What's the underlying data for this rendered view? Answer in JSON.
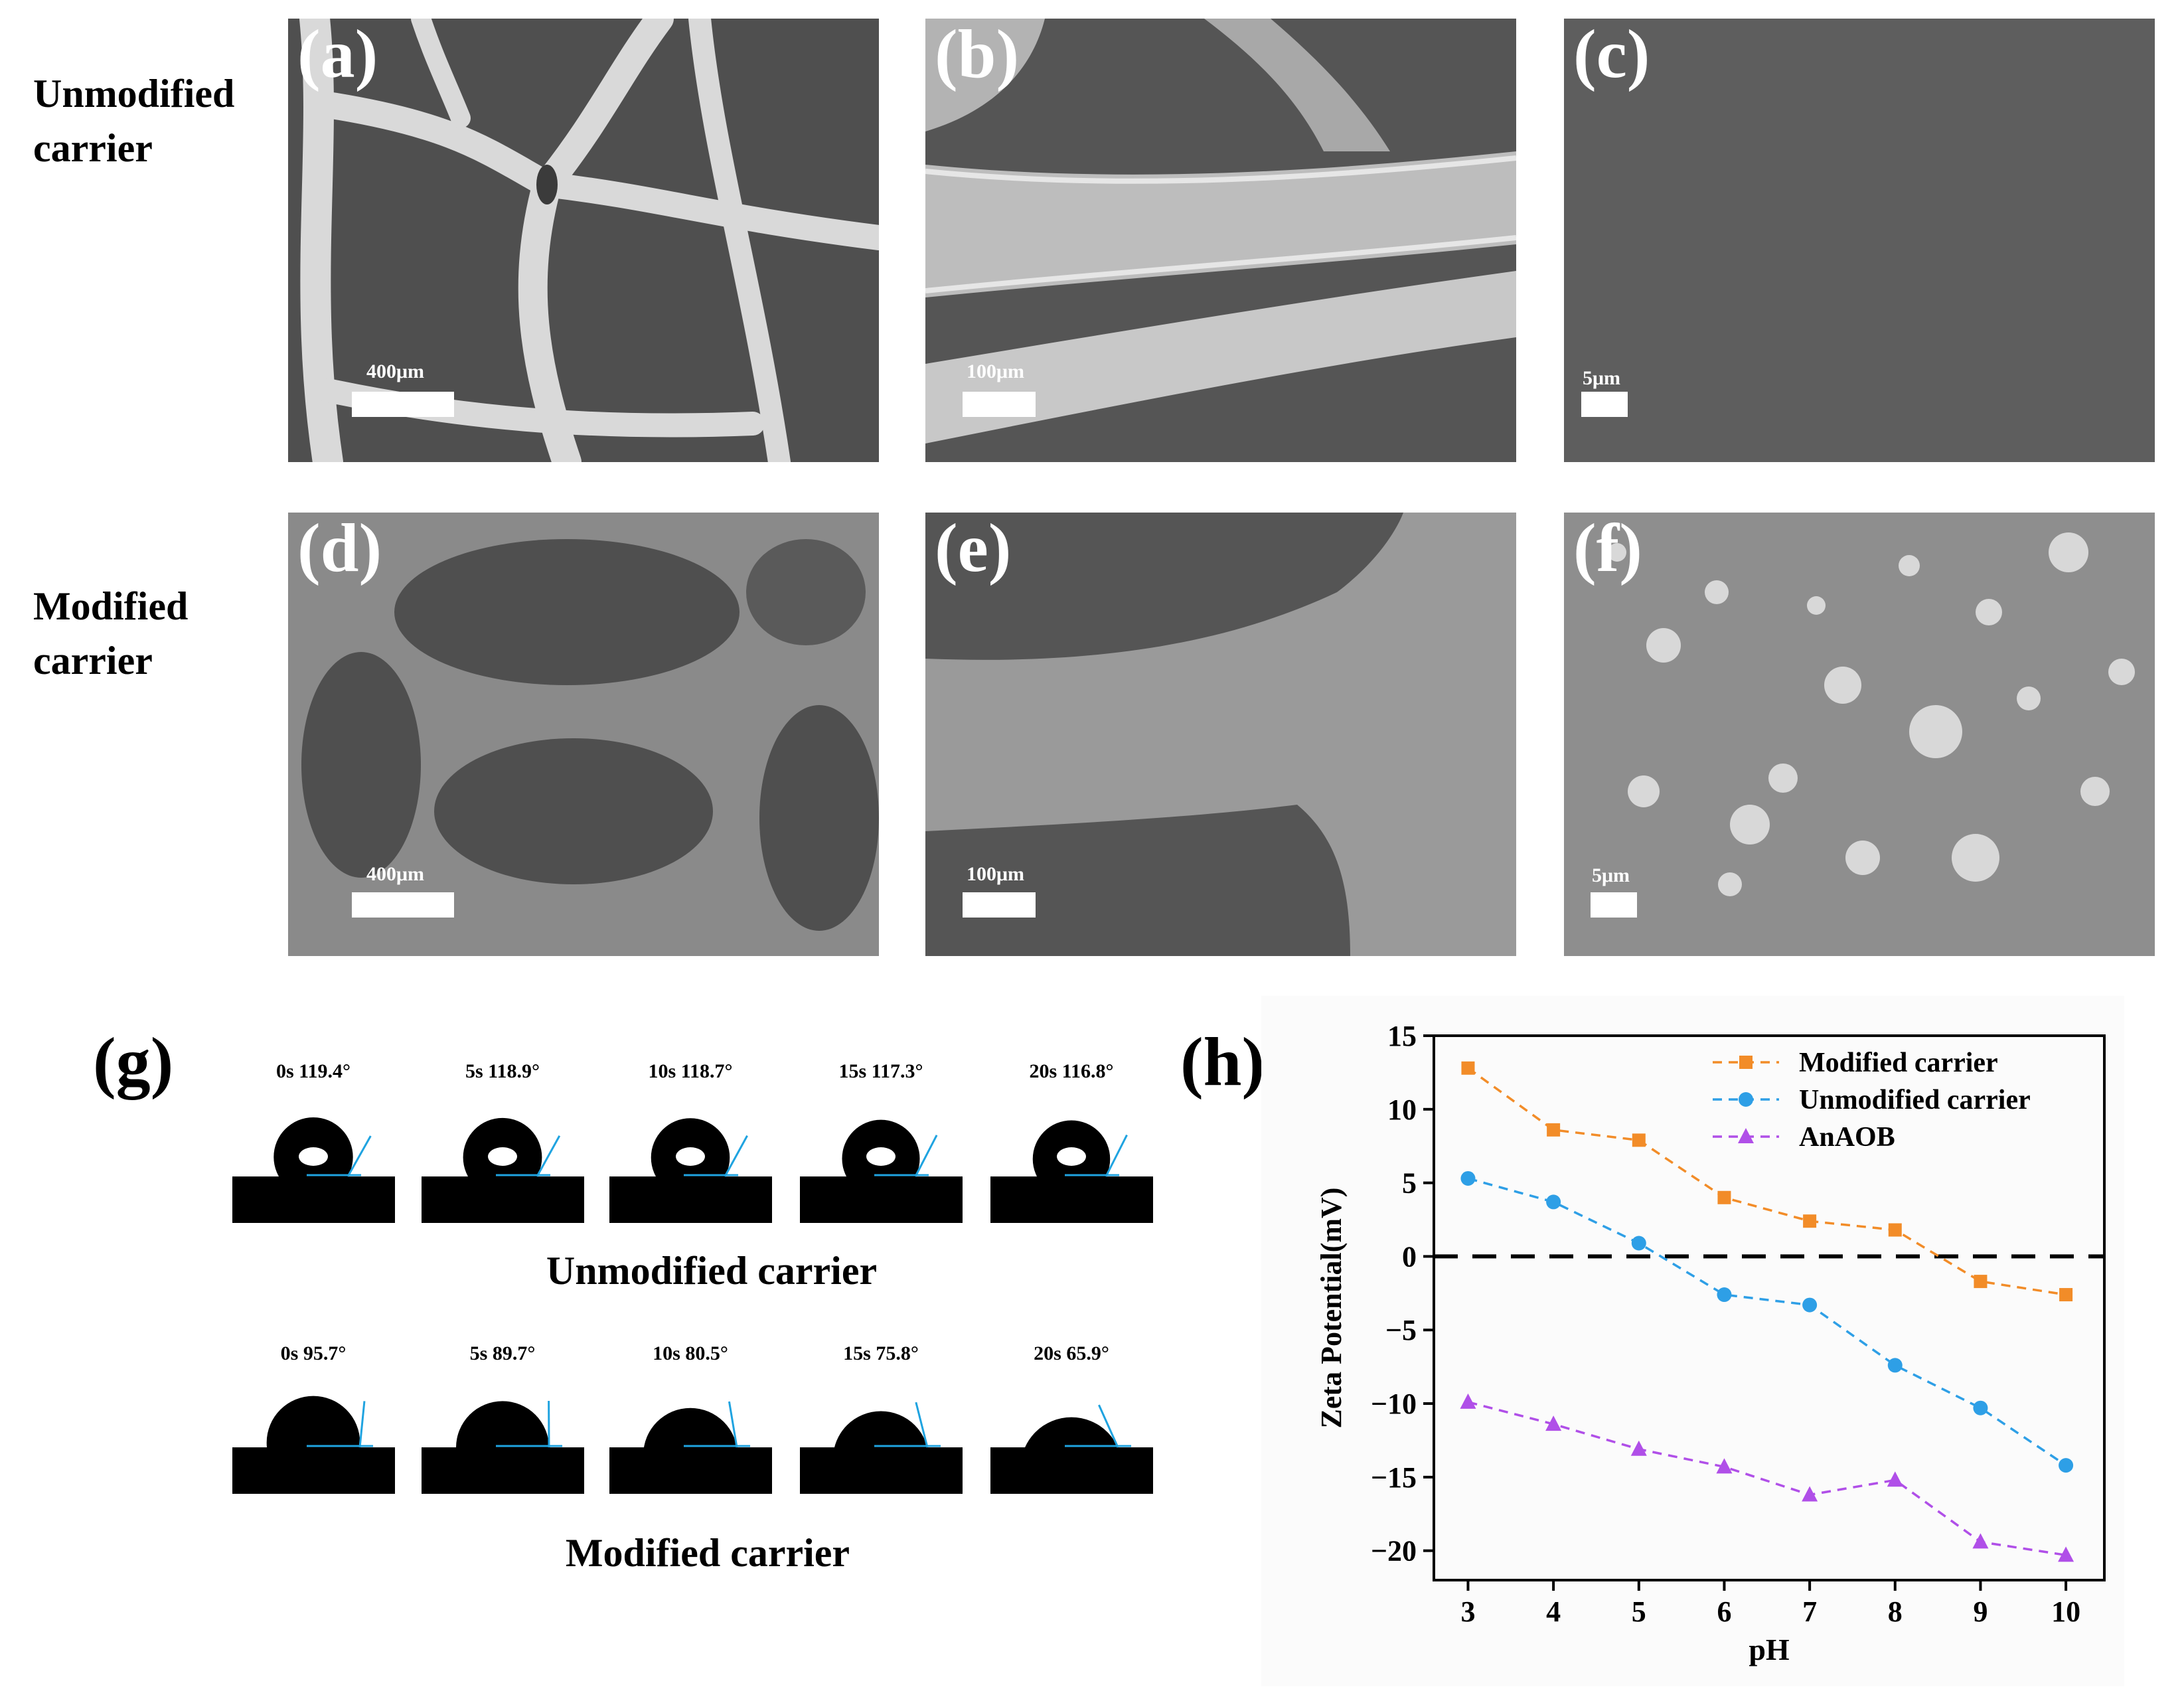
{
  "row_labels": {
    "unmodified": [
      "Unmodified",
      "carrier"
    ],
    "modified": [
      "Modified",
      "carrier"
    ]
  },
  "sem_panels": [
    {
      "letter": "(a)",
      "scale": "400μm",
      "surface": "smooth-network"
    },
    {
      "letter": "(b)",
      "scale": "100μm",
      "surface": "smooth-strut"
    },
    {
      "letter": "(c)",
      "scale": "5μm",
      "surface": "flat"
    },
    {
      "letter": "(d)",
      "scale": "400μm",
      "surface": "rough-network"
    },
    {
      "letter": "(e)",
      "scale": "100μm",
      "surface": "rough-strut"
    },
    {
      "letter": "(f)",
      "scale": "5μm",
      "surface": "particles"
    }
  ],
  "panel_g": {
    "letter": "(g)",
    "unmodified": {
      "label": "Unmodified carrier",
      "drops": [
        {
          "text": "0s 119.4°",
          "angle": 119.4
        },
        {
          "text": "5s 118.9°",
          "angle": 118.9
        },
        {
          "text": "10s 118.7°",
          "angle": 118.7
        },
        {
          "text": "15s 117.3°",
          "angle": 117.3
        },
        {
          "text": "20s 116.8°",
          "angle": 116.8
        }
      ]
    },
    "modified": {
      "label": "Modified carrier",
      "drops": [
        {
          "text": "0s 95.7°",
          "angle": 95.7
        },
        {
          "text": "5s 89.7°",
          "angle": 89.7
        },
        {
          "text": "10s 80.5°",
          "angle": 80.5
        },
        {
          "text": "15s 75.8°",
          "angle": 75.8
        },
        {
          "text": "20s 65.9°",
          "angle": 65.9
        }
      ]
    }
  },
  "panel_h": {
    "letter": "(h)"
  },
  "chart_data": {
    "type": "line",
    "title": "",
    "xlabel": "pH",
    "ylabel": "Zeta Potential(mV)",
    "x": [
      3,
      4,
      5,
      6,
      7,
      8,
      9,
      10
    ],
    "xlim": [
      2.6,
      10.45
    ],
    "ylim": [
      -22,
      15
    ],
    "yticks": [
      15,
      10,
      5,
      0,
      -5,
      -10,
      -15,
      -20
    ],
    "xticks": [
      3,
      4,
      5,
      6,
      7,
      8,
      9,
      10
    ],
    "zero_line": true,
    "legend_position": "top-right",
    "series": [
      {
        "name": "Modified carrier",
        "color": "#f28c28",
        "marker": "square",
        "values": [
          12.8,
          8.6,
          7.9,
          4.0,
          2.4,
          1.8,
          -1.7,
          -2.6
        ]
      },
      {
        "name": "Unmodified carrier",
        "color": "#2e9fe6",
        "marker": "circle",
        "values": [
          5.3,
          3.7,
          0.9,
          -2.6,
          -3.3,
          -7.4,
          -10.3,
          -14.2
        ]
      },
      {
        "name": "AnAOB",
        "color": "#b04fe8",
        "marker": "triangle",
        "values": [
          -9.9,
          -11.4,
          -13.1,
          -14.3,
          -16.2,
          -15.2,
          -19.4,
          -20.3
        ]
      }
    ]
  }
}
